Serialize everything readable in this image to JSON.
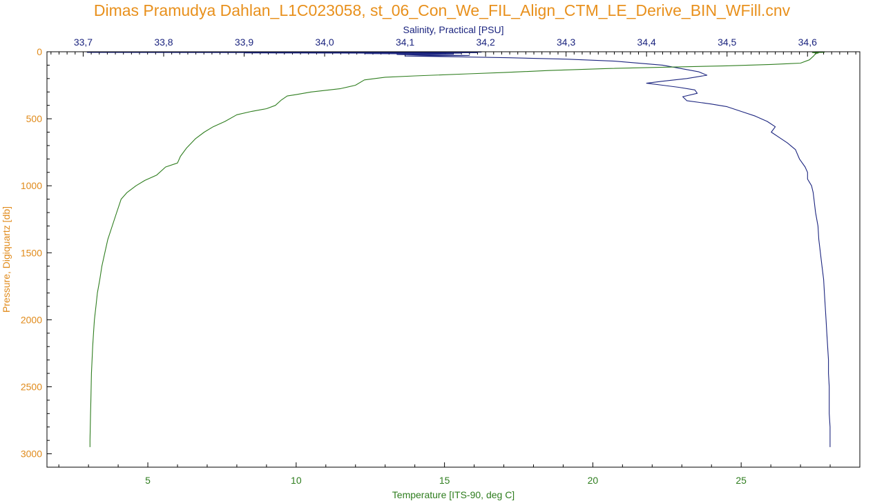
{
  "title": "Dimas Pramudya Dahlan_L1C023058, st_06_Con_We_FIL_Align_CTM_LE_Derive_BIN_WFill.cnv",
  "colors": {
    "title": "#e8901c",
    "pressure_axis": "#e08a1a",
    "salinity_axis": "#1a237e",
    "temperature_axis": "#2e7d1e",
    "salinity_line": "#1a237e",
    "temperature_line": "#2e7d1e",
    "frame": "#000000",
    "background": "#ffffff"
  },
  "chart_data": {
    "type": "line",
    "title": "Dimas Pramudya Dahlan_L1C023058, st_06_Con_We_FIL_Align_CTM_LE_Derive_BIN_WFill.cnv",
    "y_axis": {
      "label": "Pressure, Digiquartz [db]",
      "range": [
        0,
        3100
      ],
      "inverted": true,
      "ticks": [
        0,
        500,
        1000,
        1500,
        2000,
        2500,
        3000
      ],
      "tick_labels": [
        "0",
        "500",
        "1000",
        "1500",
        "2000",
        "2500",
        "3000"
      ],
      "minor_step": 100
    },
    "x_axis_top": {
      "label": "Salinity, Practical [PSU]",
      "range": [
        33.655,
        34.665
      ],
      "ticks": [
        33.7,
        33.8,
        33.9,
        34.0,
        34.1,
        34.2,
        34.3,
        34.4,
        34.5,
        34.6
      ],
      "tick_labels": [
        "33,7",
        "33,8",
        "33,9",
        "34,0",
        "34,1",
        "34,2",
        "34,3",
        "34,4",
        "34,5",
        "34,6"
      ],
      "minor_step": 0.01
    },
    "x_axis_bottom": {
      "label": "Temperature [ITS-90, deg C]",
      "range": [
        1.6,
        29.0
      ],
      "ticks": [
        5,
        10,
        15,
        20,
        25
      ],
      "tick_labels": [
        "5",
        "10",
        "15",
        "20",
        "25"
      ],
      "minor_step": 1
    },
    "grid": false,
    "series": [
      {
        "axis": "x_axis_top",
        "points": [
          [
            34.195,
            3
          ],
          [
            33.705,
            5
          ],
          [
            34.19,
            7
          ],
          [
            33.9,
            9
          ],
          [
            34.17,
            11
          ],
          [
            34.05,
            14
          ],
          [
            34.16,
            17
          ],
          [
            34.09,
            20
          ],
          [
            34.12,
            24
          ],
          [
            34.18,
            28
          ],
          [
            34.1,
            32
          ],
          [
            34.17,
            38
          ],
          [
            34.23,
            45
          ],
          [
            34.3,
            55
          ],
          [
            34.36,
            70
          ],
          [
            34.42,
            100
          ],
          [
            34.465,
            150
          ],
          [
            34.475,
            175
          ],
          [
            34.45,
            200
          ],
          [
            34.42,
            220
          ],
          [
            34.4,
            235
          ],
          [
            34.42,
            250
          ],
          [
            34.44,
            265
          ],
          [
            34.46,
            285
          ],
          [
            34.463,
            310
          ],
          [
            34.445,
            335
          ],
          [
            34.45,
            365
          ],
          [
            34.48,
            390
          ],
          [
            34.5,
            410
          ],
          [
            34.52,
            450
          ],
          [
            34.535,
            480
          ],
          [
            34.55,
            520
          ],
          [
            34.56,
            560
          ],
          [
            34.555,
            600
          ],
          [
            34.565,
            640
          ],
          [
            34.575,
            680
          ],
          [
            34.585,
            730
          ],
          [
            34.59,
            800
          ],
          [
            34.597,
            860
          ],
          [
            34.6,
            900
          ],
          [
            34.6,
            950
          ],
          [
            34.605,
            1000
          ],
          [
            34.607,
            1050
          ],
          [
            34.608,
            1100
          ],
          [
            34.61,
            1200
          ],
          [
            34.613,
            1300
          ],
          [
            34.614,
            1400
          ],
          [
            34.616,
            1500
          ],
          [
            34.618,
            1600
          ],
          [
            34.62,
            1700
          ],
          [
            34.621,
            1800
          ],
          [
            34.622,
            1900
          ],
          [
            34.623,
            2000
          ],
          [
            34.624,
            2100
          ],
          [
            34.625,
            2200
          ],
          [
            34.626,
            2300
          ],
          [
            34.626,
            2400
          ],
          [
            34.627,
            2500
          ],
          [
            34.627,
            2600
          ],
          [
            34.627,
            2700
          ],
          [
            34.628,
            2800
          ],
          [
            34.628,
            2900
          ],
          [
            34.628,
            2950
          ]
        ]
      },
      {
        "axis": "x_axis_bottom",
        "points": [
          [
            27.5,
            2
          ],
          [
            27.8,
            4
          ],
          [
            27.4,
            6
          ],
          [
            27.6,
            10
          ],
          [
            27.5,
            15
          ],
          [
            27.45,
            30
          ],
          [
            27.3,
            60
          ],
          [
            27.0,
            85
          ],
          [
            26.0,
            95
          ],
          [
            24.5,
            105
          ],
          [
            22.5,
            115
          ],
          [
            20.5,
            125
          ],
          [
            18.5,
            140
          ],
          [
            17.0,
            155
          ],
          [
            15.8,
            165
          ],
          [
            14.0,
            180
          ],
          [
            13.0,
            190
          ],
          [
            12.3,
            210
          ],
          [
            12.0,
            250
          ],
          [
            11.5,
            275
          ],
          [
            10.5,
            300
          ],
          [
            10.0,
            320
          ],
          [
            9.7,
            330
          ],
          [
            9.5,
            360
          ],
          [
            9.3,
            400
          ],
          [
            9.0,
            425
          ],
          [
            8.5,
            445
          ],
          [
            8.0,
            470
          ],
          [
            7.6,
            520
          ],
          [
            7.2,
            560
          ],
          [
            6.9,
            600
          ],
          [
            6.6,
            650
          ],
          [
            6.3,
            720
          ],
          [
            6.1,
            780
          ],
          [
            6.0,
            830
          ],
          [
            5.6,
            860
          ],
          [
            5.3,
            920
          ],
          [
            4.9,
            960
          ],
          [
            4.6,
            1000
          ],
          [
            4.3,
            1050
          ],
          [
            4.1,
            1100
          ],
          [
            3.95,
            1200
          ],
          [
            3.8,
            1300
          ],
          [
            3.65,
            1400
          ],
          [
            3.55,
            1500
          ],
          [
            3.45,
            1600
          ],
          [
            3.38,
            1700
          ],
          [
            3.3,
            1800
          ],
          [
            3.25,
            1900
          ],
          [
            3.2,
            2000
          ],
          [
            3.17,
            2100
          ],
          [
            3.14,
            2200
          ],
          [
            3.12,
            2300
          ],
          [
            3.1,
            2400
          ],
          [
            3.09,
            2500
          ],
          [
            3.08,
            2600
          ],
          [
            3.07,
            2700
          ],
          [
            3.06,
            2800
          ],
          [
            3.05,
            2900
          ],
          [
            3.05,
            2950
          ]
        ]
      }
    ]
  }
}
